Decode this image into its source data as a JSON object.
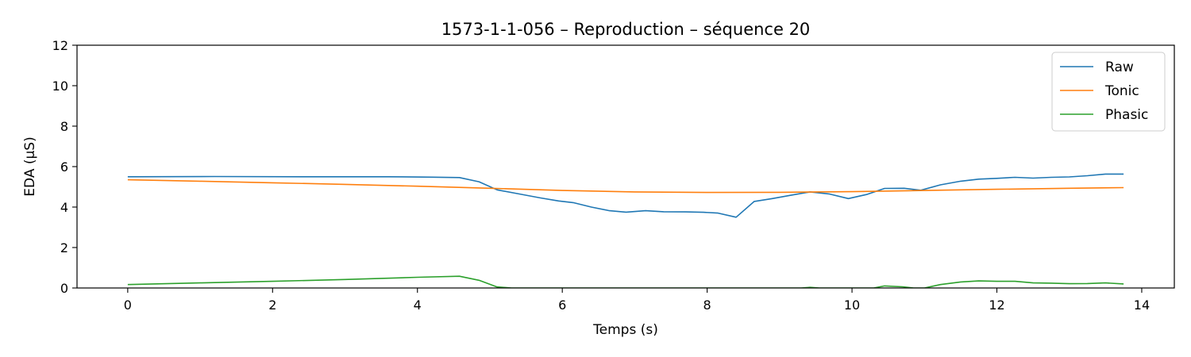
{
  "chart_data": {
    "type": "line",
    "title": "1573-1-1-056 – Reproduction – séquence 20",
    "xlabel": "Temps (s)",
    "ylabel": "EDA (µS)",
    "xlim": [
      -0.7,
      14.45
    ],
    "ylim": [
      0,
      12
    ],
    "xticks": [
      0,
      2,
      4,
      6,
      8,
      10,
      12,
      14
    ],
    "yticks": [
      0,
      2,
      4,
      6,
      8,
      10,
      12
    ],
    "grid": false,
    "legend_position": "top-right",
    "series": [
      {
        "name": "Raw",
        "color": "#1f77b4",
        "x": [
          0,
          1.2,
          2.4,
          3.6,
          4.2,
          4.58,
          4.85,
          5.1,
          5.4,
          5.7,
          5.95,
          6.15,
          6.4,
          6.65,
          6.88,
          7.15,
          7.4,
          7.7,
          7.95,
          8.15,
          8.4,
          8.65,
          8.9,
          9.15,
          9.42,
          9.68,
          9.95,
          10.2,
          10.45,
          10.72,
          10.95,
          11.22,
          11.5,
          11.75,
          12.0,
          12.25,
          12.5,
          12.75,
          13.0,
          13.25,
          13.5,
          13.75
        ],
        "y": [
          5.5,
          5.51,
          5.5,
          5.5,
          5.48,
          5.46,
          5.25,
          4.85,
          4.65,
          4.45,
          4.3,
          4.22,
          4.0,
          3.82,
          3.75,
          3.82,
          3.77,
          3.76,
          3.74,
          3.7,
          3.5,
          4.28,
          4.42,
          4.58,
          4.75,
          4.65,
          4.42,
          4.62,
          4.92,
          4.93,
          4.83,
          5.1,
          5.28,
          5.38,
          5.42,
          5.47,
          5.43,
          5.47,
          5.49,
          5.55,
          5.63,
          5.63
        ]
      },
      {
        "name": "Tonic",
        "color": "#ff7f0e",
        "x": [
          0,
          1,
          2,
          3,
          4,
          5,
          6,
          7,
          8,
          9,
          10,
          11,
          12,
          13,
          13.75
        ],
        "y": [
          5.35,
          5.28,
          5.2,
          5.12,
          5.03,
          4.93,
          4.82,
          4.75,
          4.72,
          4.73,
          4.76,
          4.82,
          4.88,
          4.93,
          4.96
        ]
      },
      {
        "name": "Phasic",
        "color": "#2ca02c",
        "x": [
          0,
          1.0,
          2.0,
          3.0,
          4.0,
          4.58,
          4.85,
          5.1,
          5.3,
          6,
          7,
          8,
          9,
          9.3,
          9.42,
          9.55,
          10.3,
          10.45,
          10.7,
          10.85,
          11.0,
          11.22,
          11.5,
          11.75,
          12.0,
          12.25,
          12.5,
          12.75,
          13.0,
          13.25,
          13.5,
          13.75
        ],
        "y": [
          0.17,
          0.25,
          0.33,
          0.42,
          0.53,
          0.58,
          0.38,
          0.05,
          0.0,
          0.0,
          0.0,
          0.0,
          0.0,
          0.0,
          0.03,
          0.0,
          0.0,
          0.1,
          0.06,
          0.0,
          0.0,
          0.17,
          0.3,
          0.35,
          0.33,
          0.33,
          0.25,
          0.24,
          0.21,
          0.22,
          0.25,
          0.2
        ]
      }
    ]
  }
}
